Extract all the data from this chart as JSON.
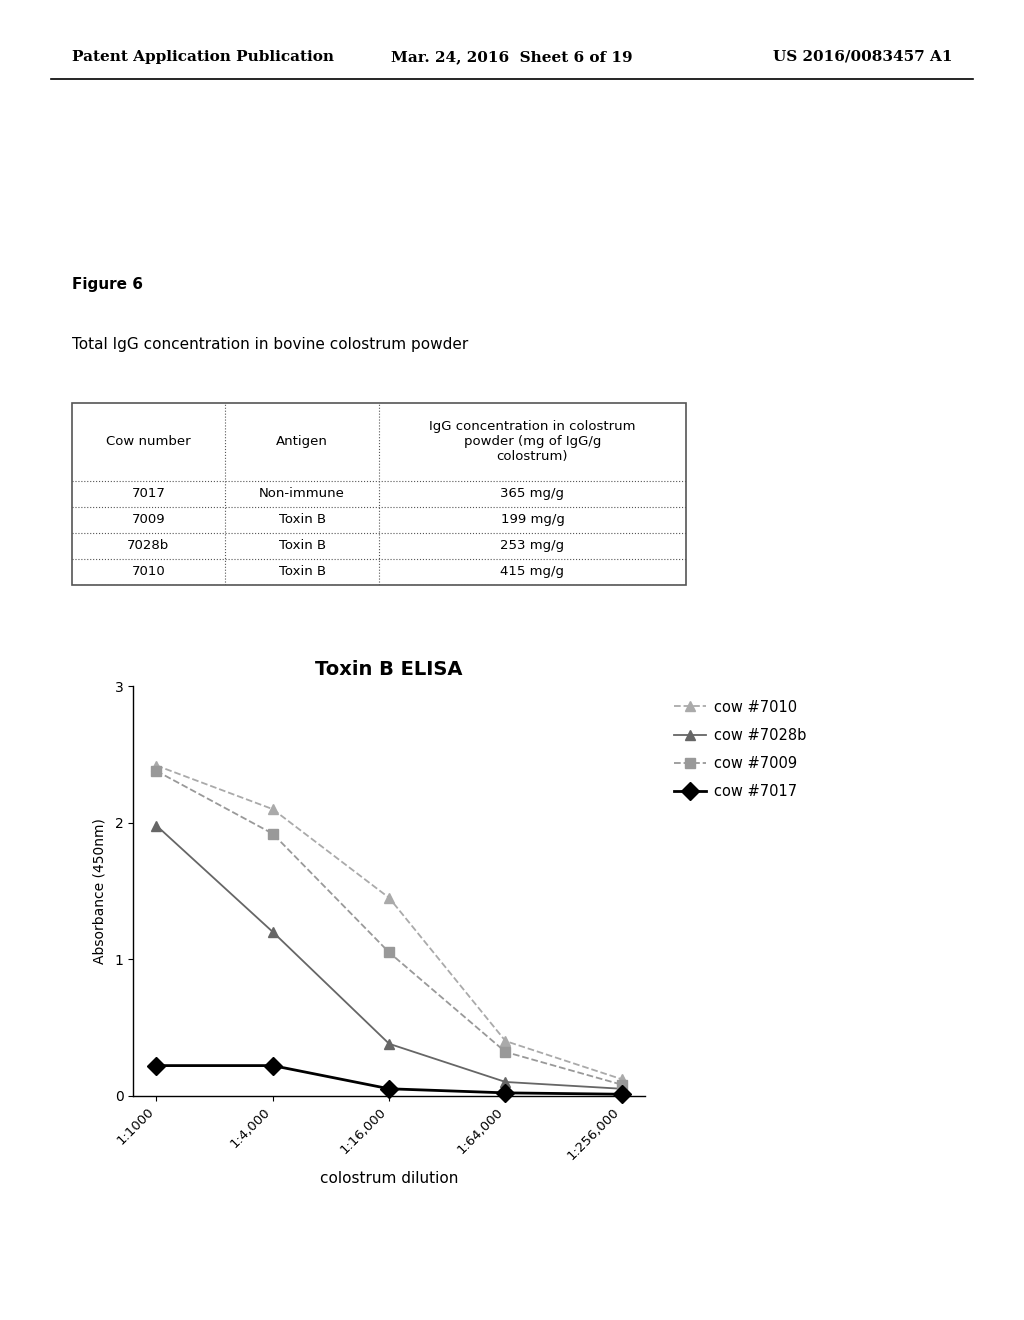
{
  "page_header_left": "Patent Application Publication",
  "page_header_center": "Mar. 24, 2016  Sheet 6 of 19",
  "page_header_right": "US 2016/0083457 A1",
  "figure_label": "Figure 6",
  "table_title": "Total IgG concentration in bovine colostrum powder",
  "table_headers": [
    "Cow number",
    "Antigen",
    "IgG concentration in colostrum\npowder (mg of IgG/g\ncolostrum)"
  ],
  "table_rows": [
    [
      "7017",
      "Non-immune",
      "365 mg/g"
    ],
    [
      "7009",
      "Toxin B",
      "199 mg/g"
    ],
    [
      "7028b",
      "Toxin B",
      "253 mg/g"
    ],
    [
      "7010",
      "Toxin B",
      "415 mg/g"
    ]
  ],
  "chart_title": "Toxin B ELISA",
  "xlabel": "colostrum dilution",
  "ylabel": "Absorbance (450nm)",
  "x_labels": [
    "1:1000",
    "1:4,000",
    "1:16,000",
    "1:64,000",
    "1:256,000"
  ],
  "x_values": [
    0,
    1,
    2,
    3,
    4
  ],
  "ylim": [
    0,
    3
  ],
  "yticks": [
    0,
    1,
    2,
    3
  ],
  "series": [
    {
      "label": "cow #7010",
      "color": "#aaaaaa",
      "marker": "^",
      "markersize": 7,
      "linewidth": 1.3,
      "linestyle": "--",
      "values": [
        2.42,
        2.1,
        1.45,
        0.4,
        0.12
      ]
    },
    {
      "label": "cow #7028b",
      "color": "#666666",
      "marker": "^",
      "markersize": 7,
      "linewidth": 1.3,
      "linestyle": "-",
      "values": [
        1.98,
        1.2,
        0.38,
        0.1,
        0.05
      ]
    },
    {
      "label": "cow #7009",
      "color": "#999999",
      "marker": "s",
      "markersize": 7,
      "linewidth": 1.3,
      "linestyle": "--",
      "values": [
        2.38,
        1.92,
        1.05,
        0.32,
        0.08
      ]
    },
    {
      "label": "cow #7017",
      "color": "#000000",
      "marker": "D",
      "markersize": 9,
      "linewidth": 2.0,
      "linestyle": "-",
      "values": [
        0.22,
        0.22,
        0.05,
        0.02,
        0.01
      ]
    }
  ],
  "background_color": "#ffffff"
}
